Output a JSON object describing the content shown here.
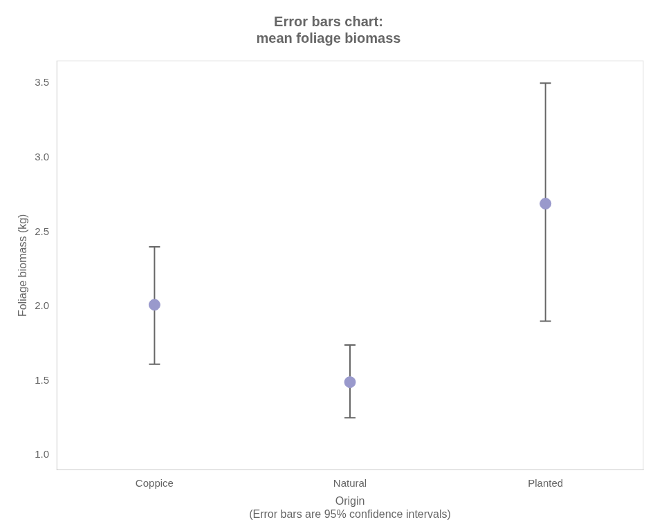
{
  "chart_data": {
    "type": "scatter",
    "title": "Error bars chart:\nmean foliage biomass",
    "xlabel": "Origin\n(Error bars are 95% confidence intervals)",
    "ylabel": "Foliage biomass (kg)",
    "categories": [
      "Coppice",
      "Natural",
      "Planted"
    ],
    "values": [
      2.01,
      1.49,
      2.69
    ],
    "ci_lower": [
      1.61,
      1.25,
      1.9
    ],
    "ci_upper": [
      2.4,
      1.74,
      3.5
    ],
    "color": "#9999cc",
    "ylim": [
      0.9,
      3.65
    ],
    "yticks": [
      {
        "value": 1,
        "label": "1.0"
      },
      1.5,
      {
        "value": 2,
        "label": "2.0"
      },
      2.5,
      {
        "value": 3,
        "label": "3.0"
      },
      3.5
    ],
    "grid": false
  }
}
